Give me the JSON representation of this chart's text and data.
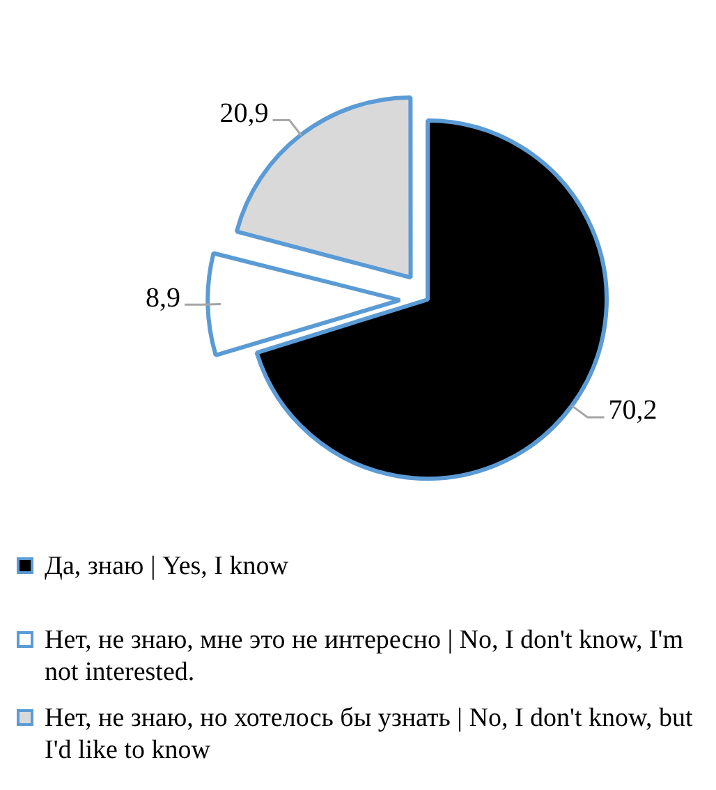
{
  "chart_data": {
    "type": "pie",
    "categories": [
      "Да, знаю | Yes, I know",
      "Нет, не знаю, мне это не интересно | No, I don't know, I'm not interested.",
      "Нет, не знаю, но хотелось бы узнать | No, I don't know, but I'd like to know"
    ],
    "values": [
      70.2,
      8.9,
      20.9
    ],
    "colors": [
      "#000000",
      "#ffffff",
      "#d9d9d9"
    ],
    "value_labels": [
      "70,2",
      "8,9",
      "20,9"
    ],
    "legend": "bottom"
  }
}
